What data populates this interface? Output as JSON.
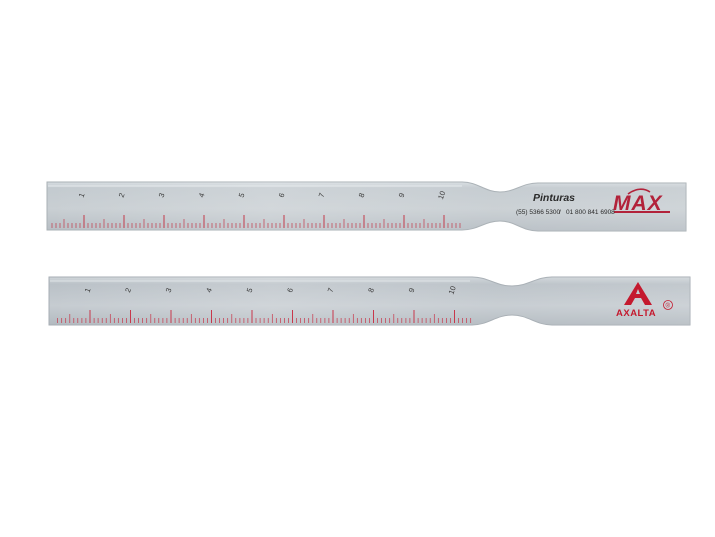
{
  "scene": {
    "description_kind": "photo",
    "background_color": "#ffffff"
  },
  "rulers": [
    {
      "id": "top",
      "numbers": [
        "1",
        "2",
        "3",
        "4",
        "5",
        "6",
        "7",
        "8",
        "9",
        "10"
      ],
      "brand": {
        "line1": "Pinturas",
        "logo": "MAX",
        "phone1": "(55) 5366 5300",
        "separator": "/",
        "phone2": "01 800 841 6908"
      },
      "colors": {
        "body": "#c4cbd0",
        "ink": "#c23a4a",
        "brand_ink": "#b2223a",
        "text_ink": "#2a2a2a"
      }
    },
    {
      "id": "bottom",
      "numbers": [
        "1",
        "2",
        "3",
        "4",
        "5",
        "6",
        "7",
        "8",
        "9",
        "10"
      ],
      "brand": {
        "logo": "AXALTA",
        "mark": "®"
      },
      "colors": {
        "body": "#c2c9cf",
        "ink": "#c8374b",
        "brand_ink": "#c4192e"
      }
    }
  ]
}
